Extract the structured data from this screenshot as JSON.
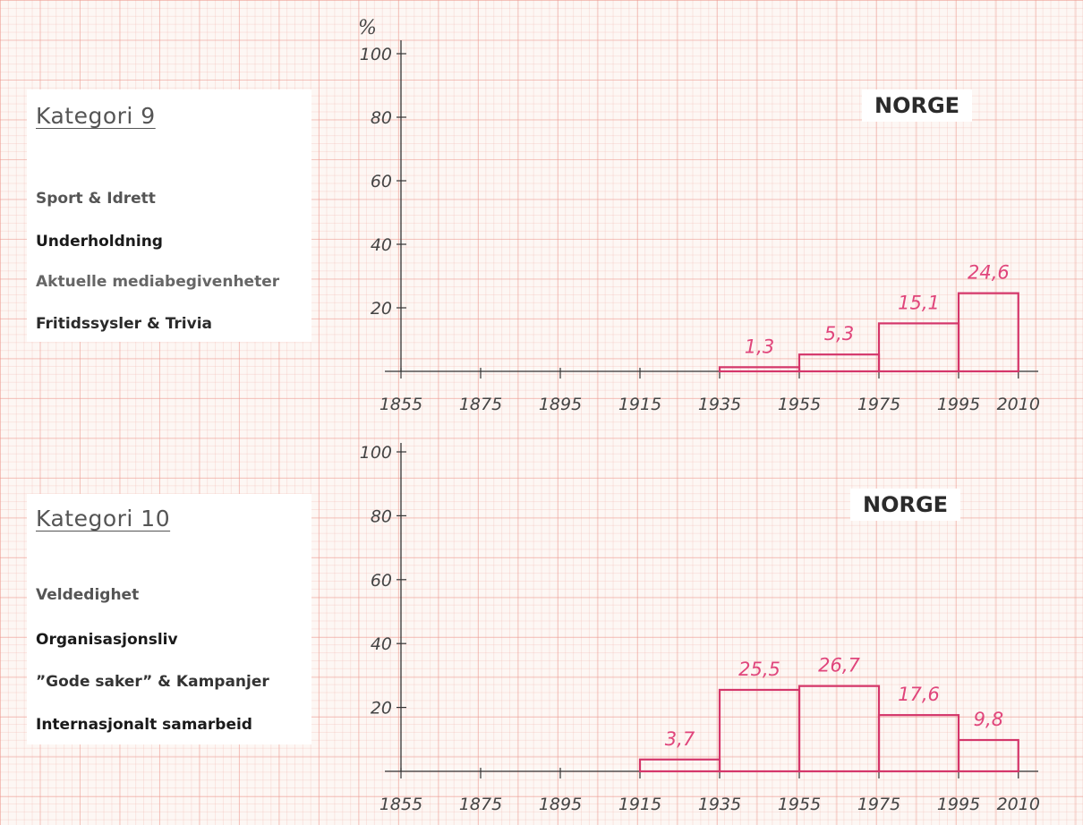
{
  "colors": {
    "bar_stroke": "#d4366a",
    "value_label": "#e0457b",
    "axis": "#333333"
  },
  "panels": [
    {
      "category_title": "Kategori  9",
      "items": [
        {
          "label": "Sport & Idrett",
          "color": "#555555"
        },
        {
          "label": "Underholdning",
          "color": "#1a1a1a"
        },
        {
          "label": "Aktuelle mediabegivenheter",
          "color": "#666666"
        },
        {
          "label": "Fritidssysler & Trivia",
          "color": "#2a2a2a"
        }
      ],
      "badge": "NORGE"
    },
    {
      "category_title": "Kategori  10",
      "items": [
        {
          "label": "Veldedighet",
          "color": "#555555"
        },
        {
          "label": "Organisasjonsliv",
          "color": "#1a1a1a"
        },
        {
          "label": "”Gode saker” & Kampanjer",
          "color": "#333333"
        },
        {
          "label": "Internasjonalt samarbeid",
          "color": "#1a1a1a"
        }
      ],
      "badge": "NORGE"
    }
  ],
  "chart_data": [
    {
      "type": "bar",
      "title": "NORGE",
      "ylabel": "%",
      "ylim": [
        0,
        100
      ],
      "y_ticks": [
        "20",
        "40",
        "60",
        "80",
        "100"
      ],
      "x_ticks": [
        "1855",
        "1875",
        "1895",
        "1915",
        "1935",
        "1955",
        "1975",
        "1995",
        "2010"
      ],
      "bins": [
        {
          "from": 1935,
          "to": 1955,
          "value": 1.3,
          "label": "1,3"
        },
        {
          "from": 1955,
          "to": 1975,
          "value": 5.3,
          "label": "5,3"
        },
        {
          "from": 1975,
          "to": 1995,
          "value": 15.1,
          "label": "15,1"
        },
        {
          "from": 1995,
          "to": 2010,
          "value": 24.6,
          "label": "24,6"
        }
      ]
    },
    {
      "type": "bar",
      "title": "NORGE",
      "ylabel": "",
      "ylim": [
        0,
        100
      ],
      "y_ticks": [
        "20",
        "40",
        "60",
        "80",
        "100"
      ],
      "x_ticks": [
        "1855",
        "1875",
        "1895",
        "1915",
        "1935",
        "1955",
        "1975",
        "1995",
        "2010"
      ],
      "bins": [
        {
          "from": 1915,
          "to": 1935,
          "value": 3.7,
          "label": "3,7"
        },
        {
          "from": 1935,
          "to": 1955,
          "value": 25.5,
          "label": "25,5"
        },
        {
          "from": 1955,
          "to": 1975,
          "value": 26.7,
          "label": "26,7"
        },
        {
          "from": 1975,
          "to": 1995,
          "value": 17.6,
          "label": "17,6"
        },
        {
          "from": 1995,
          "to": 2010,
          "value": 9.8,
          "label": "9,8"
        }
      ]
    }
  ]
}
